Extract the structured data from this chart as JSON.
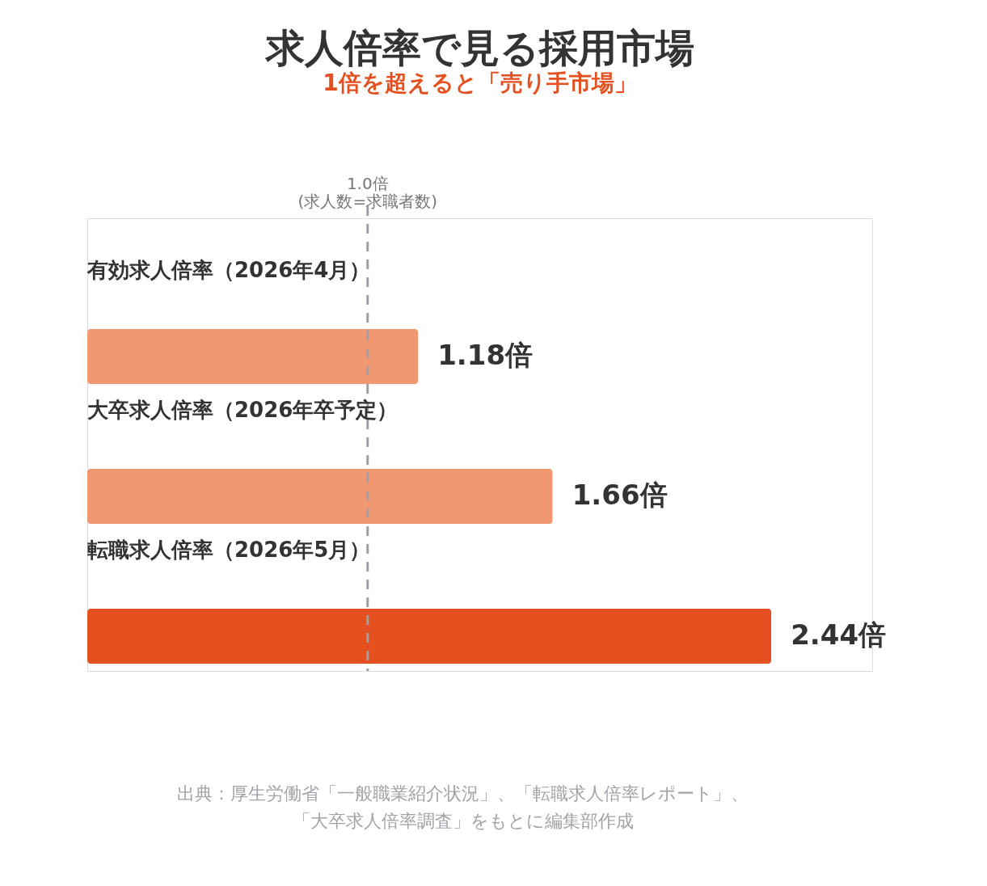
{
  "chart_data": {
    "type": "bar",
    "orientation": "horizontal",
    "title": "求人倍率で見る採用市場",
    "subtitle": "1倍を超えると「売り手市場」",
    "categories": [
      "有効求人倍率（2026年4月）",
      "大卒求人倍率（2026年卒予定）",
      "転職求人倍率（2026年5月）"
    ],
    "values": [
      1.18,
      1.66,
      2.44
    ],
    "colors": [
      "#f19772",
      "#f19772",
      "#e4501f"
    ],
    "value_labels": [
      "1.18倍",
      "1.66倍",
      "2.44倍"
    ],
    "xlim": [
      0,
      2.8
    ],
    "tick_labels": false,
    "ref_lines": [
      {
        "axis": "x",
        "value": 1.0,
        "label": "1.0倍\n(求人数=求職者数)",
        "color": "#9aa0a6",
        "line_style": "dashed"
      }
    ],
    "annotations": [
      "出典：厚生労働省「一般職業紹介状況」、「転職求人倍率レポート」、",
      "「大卒求人倍率調査」をもとに編集部作成"
    ]
  }
}
